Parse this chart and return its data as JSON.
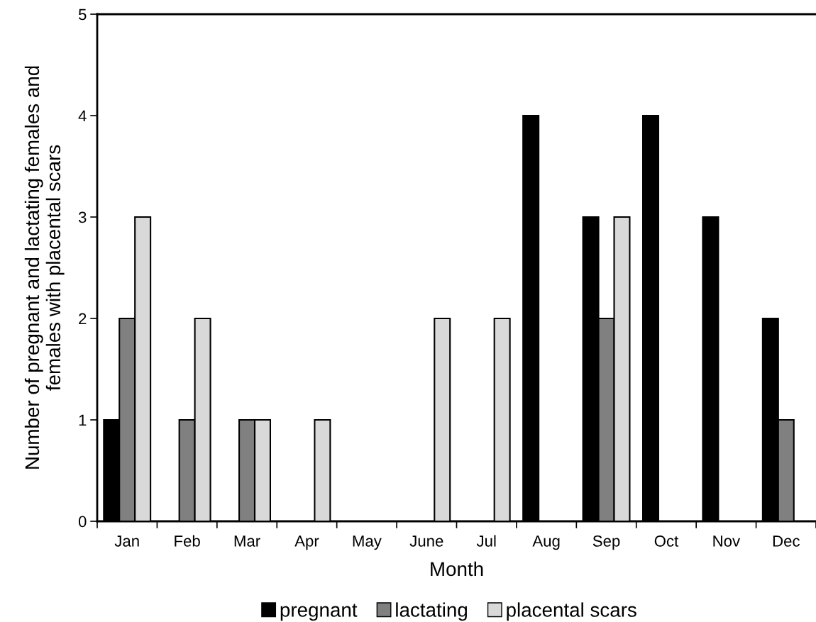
{
  "chart_data": {
    "type": "bar",
    "xlabel": "Month",
    "ylabel": "Number of pregnant and lactating females and\nfemales with placental scars",
    "categories": [
      "Jan",
      "Feb",
      "Mar",
      "Apr",
      "May",
      "June",
      "Jul",
      "Aug",
      "Sep",
      "Oct",
      "Nov",
      "Dec"
    ],
    "series": [
      {
        "name": "pregnant",
        "color": "#000000",
        "values": [
          1,
          0,
          0,
          0,
          0,
          0,
          0,
          4,
          3,
          4,
          3,
          2
        ]
      },
      {
        "name": "lactating",
        "color": "#808080",
        "values": [
          2,
          1,
          1,
          0,
          0,
          0,
          0,
          0,
          2,
          0,
          0,
          1
        ]
      },
      {
        "name": "placental scars",
        "color": "#d9d9d9",
        "values": [
          3,
          2,
          1,
          1,
          0,
          2,
          2,
          0,
          3,
          0,
          0,
          0
        ]
      }
    ],
    "ylim": [
      0,
      5
    ],
    "yticks": [
      0,
      1,
      2,
      3,
      4,
      5
    ],
    "grid": false,
    "legend": "bottom"
  }
}
